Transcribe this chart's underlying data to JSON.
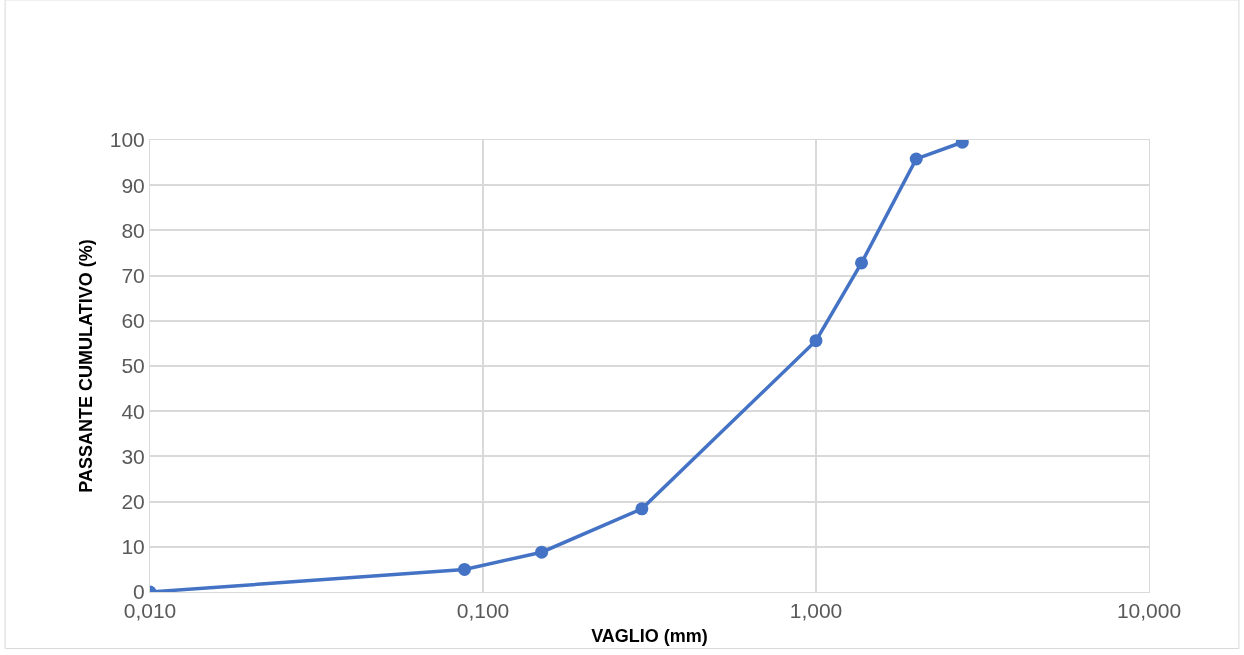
{
  "chart_data": {
    "type": "line",
    "xlabel": "VAGLIO (mm)",
    "ylabel": "PASSANTE CUMULATIVO (%)",
    "log": "x",
    "grid": true,
    "marker": "circle",
    "line_style": "solid",
    "legend": false,
    "xlim": [
      0.01,
      10
    ],
    "xticks": [
      {
        "value": 0.01,
        "label": "0,010"
      },
      {
        "value": 0.1,
        "label": "0,100"
      },
      {
        "value": 1,
        "label": "1,000"
      },
      {
        "value": 10,
        "label": "10,000"
      }
    ],
    "ylim": [
      0,
      100
    ],
    "yticks": [
      0,
      10,
      20,
      30,
      40,
      50,
      60,
      70,
      80,
      90,
      100
    ],
    "x": [
      0.01,
      0.088,
      0.15,
      0.3,
      1.0,
      1.37,
      2.0,
      2.75
    ],
    "series": [
      {
        "color": "#4472c4",
        "values": [
          0,
          5,
          8.8,
          18.4,
          55.6,
          72.8,
          95.8,
          99.5
        ]
      }
    ]
  }
}
